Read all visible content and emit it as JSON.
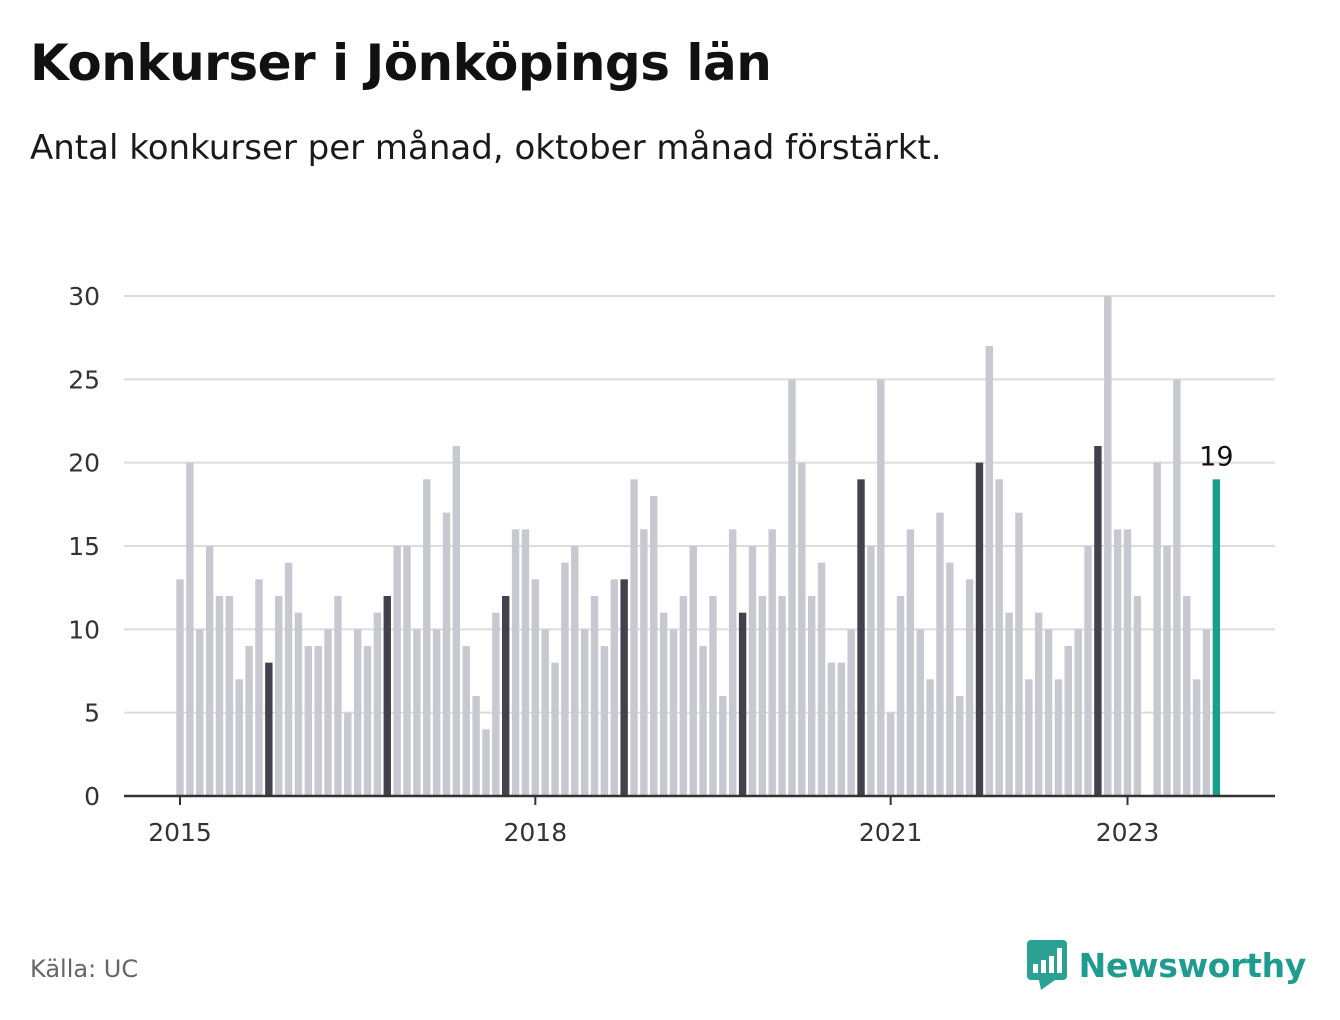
{
  "title": "Konkurser i Jönköpings län",
  "subtitle": "Antal konkurser per månad, oktober månad förstärkt.",
  "source": "Källa: UC",
  "brand": {
    "name": "Newsworthy",
    "icon": "bar-chart-speech-bubble-icon"
  },
  "colors": {
    "base": "#c8c8d0",
    "highlight": "#43414d",
    "current": "#16a08c",
    "grid": "#dcdcdc",
    "axis": "#333333"
  },
  "chart_data": {
    "type": "bar",
    "start": "2015-01",
    "highlight_month": 10,
    "values": [
      13,
      20,
      10,
      15,
      12,
      12,
      7,
      9,
      13,
      8,
      12,
      14,
      11,
      9,
      9,
      10,
      12,
      5,
      10,
      9,
      11,
      12,
      15,
      15,
      10,
      19,
      10,
      17,
      21,
      9,
      6,
      4,
      11,
      12,
      16,
      16,
      13,
      10,
      8,
      14,
      15,
      10,
      12,
      9,
      13,
      13,
      19,
      16,
      18,
      11,
      10,
      12,
      15,
      9,
      12,
      6,
      16,
      11,
      15,
      12,
      16,
      12,
      25,
      20,
      12,
      14,
      8,
      8,
      10,
      19,
      15,
      25,
      5,
      12,
      16,
      10,
      7,
      17,
      14,
      6,
      13,
      20,
      27,
      19,
      11,
      17,
      7,
      11,
      10,
      7,
      9,
      10,
      15,
      21,
      30,
      16,
      16,
      12,
      0,
      20,
      15,
      25,
      12,
      7,
      10,
      19
    ],
    "last_value_label": "19",
    "ylim": [
      0,
      30
    ],
    "yticks": [
      "0",
      "5",
      "10",
      "15",
      "20",
      "25",
      "30"
    ],
    "xticks": [
      {
        "label": "2015",
        "month": "2015-01"
      },
      {
        "label": "2018",
        "month": "2018-01"
      },
      {
        "label": "2021",
        "month": "2021-01"
      },
      {
        "label": "2023",
        "month": "2023-01"
      }
    ],
    "grid": true,
    "xlabel": "",
    "ylabel": ""
  }
}
